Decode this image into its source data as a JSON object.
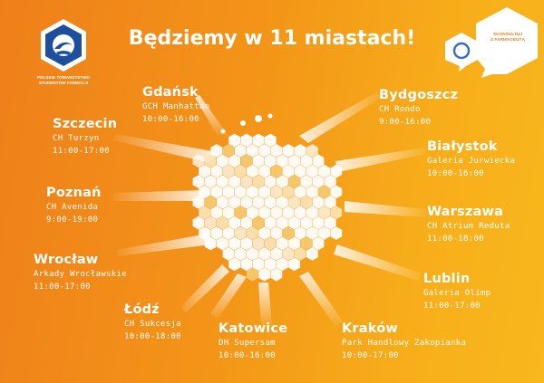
{
  "header": {
    "title": "Będziemy w 11 miastach!"
  },
  "logo": {
    "org_line1": "POLSKIE TOWARZYSTWO",
    "org_line2": "STUDENTÓW FARMACJI"
  },
  "bubble": {
    "line1": "SKONSULTUJ",
    "line2": "Z FARMACEUTĄ"
  },
  "colors": {
    "background_start": "#ef7f1a",
    "background_end": "#f9b81d",
    "text": "#ffffff",
    "logo_blue": "#1d4f9c",
    "bubble_ring": "#3a6fc0"
  },
  "cities": [
    {
      "name": "Gdańsk",
      "venue": "GCH Manhattan",
      "hours": "10:00-16:00"
    },
    {
      "name": "Bydgoszcz",
      "venue": "CH Rondo",
      "hours": "9:00-16:00"
    },
    {
      "name": "Szczecin",
      "venue": "CH Turzyn",
      "hours": "11:00-17:00"
    },
    {
      "name": "Białystok",
      "venue": "Galeria Jurwiecka",
      "hours": "10:00-16:00"
    },
    {
      "name": "Poznań",
      "venue": "CH Avenida",
      "hours": "9:00-19:00"
    },
    {
      "name": "Warszawa",
      "venue": "CH Atrium Reduta",
      "hours": "11:00-18:00"
    },
    {
      "name": "Wrocław",
      "venue": "Arkady Wrocławskie",
      "hours": "11:00-17:00"
    },
    {
      "name": "Lublin",
      "venue": "Galeria Olimp",
      "hours": "11:00-17:00"
    },
    {
      "name": "Łódź",
      "venue": "CH Sukcesja",
      "hours": "10:00-18:00"
    },
    {
      "name": "Katowice",
      "venue": "DH Supersam",
      "hours": "10:00-16:00"
    },
    {
      "name": "Kraków",
      "venue": "Park Handlowy Zakopianka",
      "hours": "10:00-17:00"
    }
  ]
}
